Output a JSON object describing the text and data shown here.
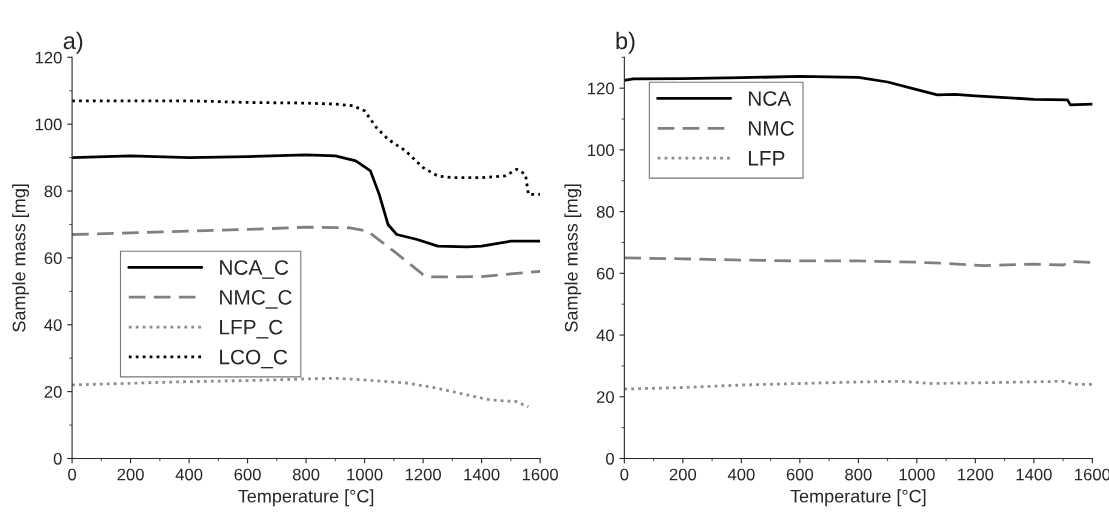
{
  "chart_data": [
    {
      "type": "line",
      "title": "a)",
      "xlabel": "Temperature [°C]",
      "ylabel": "Sample mass [mg]",
      "xlim": [
        0,
        1600
      ],
      "xticks": [
        0,
        200,
        400,
        600,
        800,
        1000,
        1200,
        1400,
        1600
      ],
      "ylim": [
        0,
        120
      ],
      "yticks": [
        0,
        20,
        40,
        60,
        80,
        100,
        120
      ],
      "grid": false,
      "legend": "left",
      "marker": "none",
      "series": [
        {
          "name": "NCA_C",
          "color": "#000000",
          "line_style": "solid",
          "x": [
            0,
            200,
            400,
            600,
            800,
            900,
            970,
            1020,
            1050,
            1080,
            1110,
            1180,
            1250,
            1350,
            1400,
            1500,
            1600
          ],
          "values": [
            90,
            90.5,
            90,
            90.3,
            90.8,
            90.5,
            89,
            86,
            79,
            70,
            67,
            65.5,
            63.5,
            63.3,
            63.5,
            65,
            65
          ]
        },
        {
          "name": "NMC_C",
          "color": "#808080",
          "line_style": "dashed",
          "x": [
            0,
            200,
            400,
            600,
            800,
            950,
            1010,
            1100,
            1200,
            1220,
            1400,
            1600
          ],
          "values": [
            67,
            67.5,
            68,
            68.5,
            69.2,
            69,
            68,
            62,
            55,
            54.3,
            54.4,
            56
          ]
        },
        {
          "name": "LFP_C",
          "color": "#8c8c8c",
          "line_style": "dotted",
          "x": [
            0,
            200,
            400,
            600,
            800,
            900,
            1000,
            1150,
            1250,
            1350,
            1430,
            1520,
            1530,
            1560
          ],
          "values": [
            22,
            22.5,
            23,
            23.3,
            23.8,
            24,
            23.5,
            22.5,
            21,
            19,
            17.5,
            17,
            16.5,
            15.5
          ]
        },
        {
          "name": "LCO_C",
          "color": "#000000",
          "line_style": "dotted",
          "x": [
            0,
            200,
            400,
            600,
            800,
            900,
            960,
            1000,
            1040,
            1080,
            1140,
            1200,
            1250,
            1300,
            1400,
            1480,
            1520,
            1550,
            1560,
            1600
          ],
          "values": [
            107,
            107,
            107,
            106.5,
            106.3,
            106,
            105.5,
            104,
            99,
            95.5,
            92,
            87,
            84.5,
            84,
            84,
            84.5,
            86.5,
            85,
            79,
            79
          ]
        }
      ]
    },
    {
      "type": "line",
      "title": "b)",
      "xlabel": "Temperature [°C]",
      "ylabel": "Sample mass [mg]",
      "xlim": [
        0,
        1600
      ],
      "xticks": [
        0,
        200,
        400,
        600,
        800,
        1000,
        1200,
        1400,
        1600
      ],
      "ylim": [
        0,
        130
      ],
      "yticks": [
        0,
        20,
        40,
        60,
        80,
        100,
        120
      ],
      "grid": false,
      "legend": "top left",
      "marker": "none",
      "series": [
        {
          "name": "NCA",
          "color": "#000000",
          "line_style": "solid",
          "x": [
            0,
            30,
            200,
            400,
            600,
            800,
            900,
            1000,
            1070,
            1130,
            1200,
            1400,
            1515,
            1525,
            1600
          ],
          "values": [
            122.5,
            123,
            123.1,
            123.4,
            123.8,
            123.5,
            122,
            119.5,
            117.8,
            118,
            117.5,
            116.4,
            116.2,
            114.6,
            114.8
          ]
        },
        {
          "name": "NMC",
          "color": "#808080",
          "line_style": "dashed",
          "x": [
            0,
            200,
            400,
            600,
            800,
            1000,
            1100,
            1230,
            1400,
            1500,
            1530,
            1600
          ],
          "values": [
            65,
            64.7,
            64.3,
            64,
            64,
            63.6,
            63.2,
            62.5,
            63,
            62.7,
            63.8,
            63.5
          ]
        },
        {
          "name": "LFP",
          "color": "#8c8c8c",
          "line_style": "dotted",
          "x": [
            0,
            200,
            400,
            600,
            800,
            950,
            1050,
            1200,
            1500,
            1540,
            1600
          ],
          "values": [
            22.5,
            23,
            23.8,
            24.3,
            24.8,
            25,
            24.3,
            24.5,
            25,
            24,
            24
          ]
        }
      ]
    }
  ]
}
